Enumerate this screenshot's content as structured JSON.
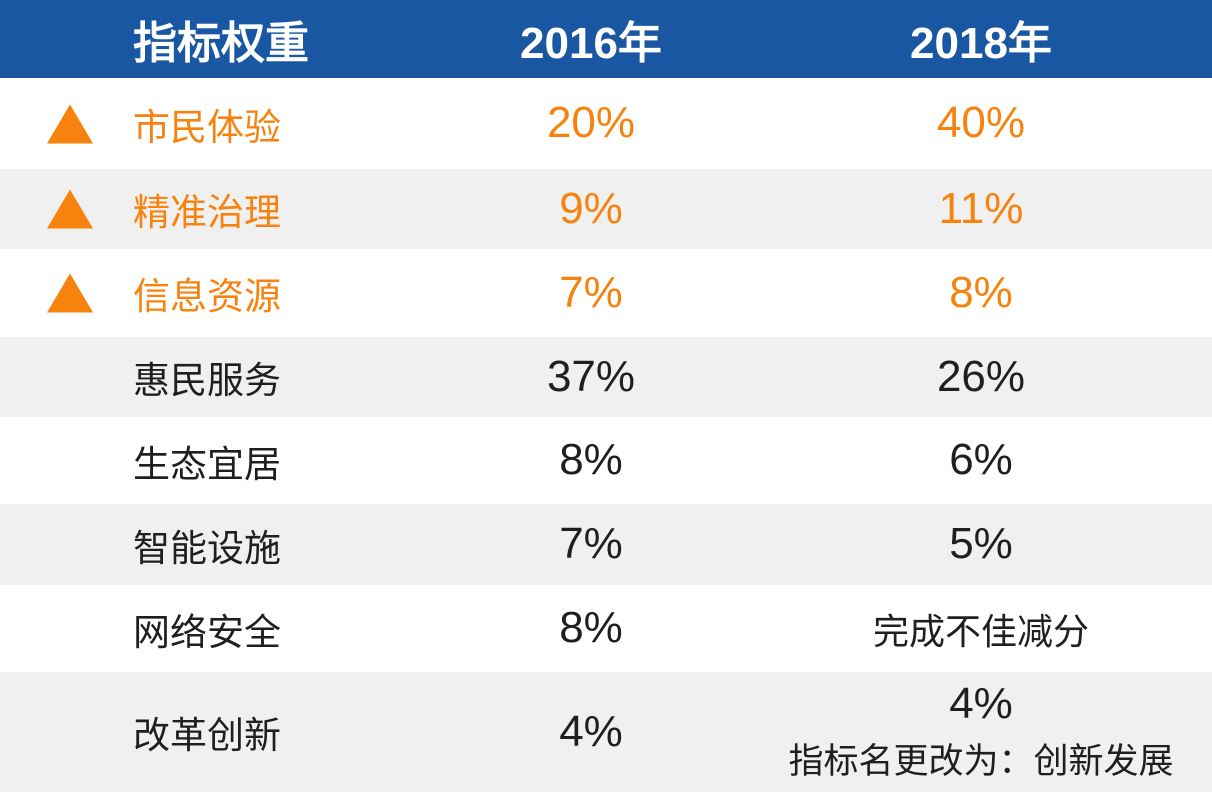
{
  "chart_data": {
    "type": "table",
    "title": "指标权重",
    "columns": [
      "指标权重",
      "2016年",
      "2018年"
    ],
    "rows": [
      {
        "label": "市民体验",
        "y2016": "20%",
        "y2018": "40%",
        "trend": "up",
        "highlighted": true
      },
      {
        "label": "精准治理",
        "y2016": "9%",
        "y2018": "11%",
        "trend": "up",
        "highlighted": true
      },
      {
        "label": "信息资源",
        "y2016": "7%",
        "y2018": "8%",
        "trend": "up",
        "highlighted": true
      },
      {
        "label": "惠民服务",
        "y2016": "37%",
        "y2018": "26%",
        "trend": "none",
        "highlighted": false
      },
      {
        "label": "生态宜居",
        "y2016": "8%",
        "y2018": "6%",
        "trend": "none",
        "highlighted": false
      },
      {
        "label": "智能设施",
        "y2016": "7%",
        "y2018": "5%",
        "trend": "none",
        "highlighted": false
      },
      {
        "label": "网络安全",
        "y2016": "8%",
        "y2018": "完成不佳减分",
        "trend": "none",
        "highlighted": false
      },
      {
        "label": "改革创新",
        "y2016": "4%",
        "y2018": "4%",
        "y2018_note": "指标名更改为：创新发展",
        "trend": "none",
        "highlighted": false
      }
    ],
    "colors": {
      "header_bg": "#1A57A2",
      "header_text": "#FFFFFF",
      "accent_orange": "#F7820D",
      "row_alt_bg": "#F0F0F0",
      "row_bg": "#FFFFFF",
      "body_text": "#1F1F1F"
    },
    "layout_hints": {
      "legend_position": "none",
      "grid": "off"
    }
  }
}
